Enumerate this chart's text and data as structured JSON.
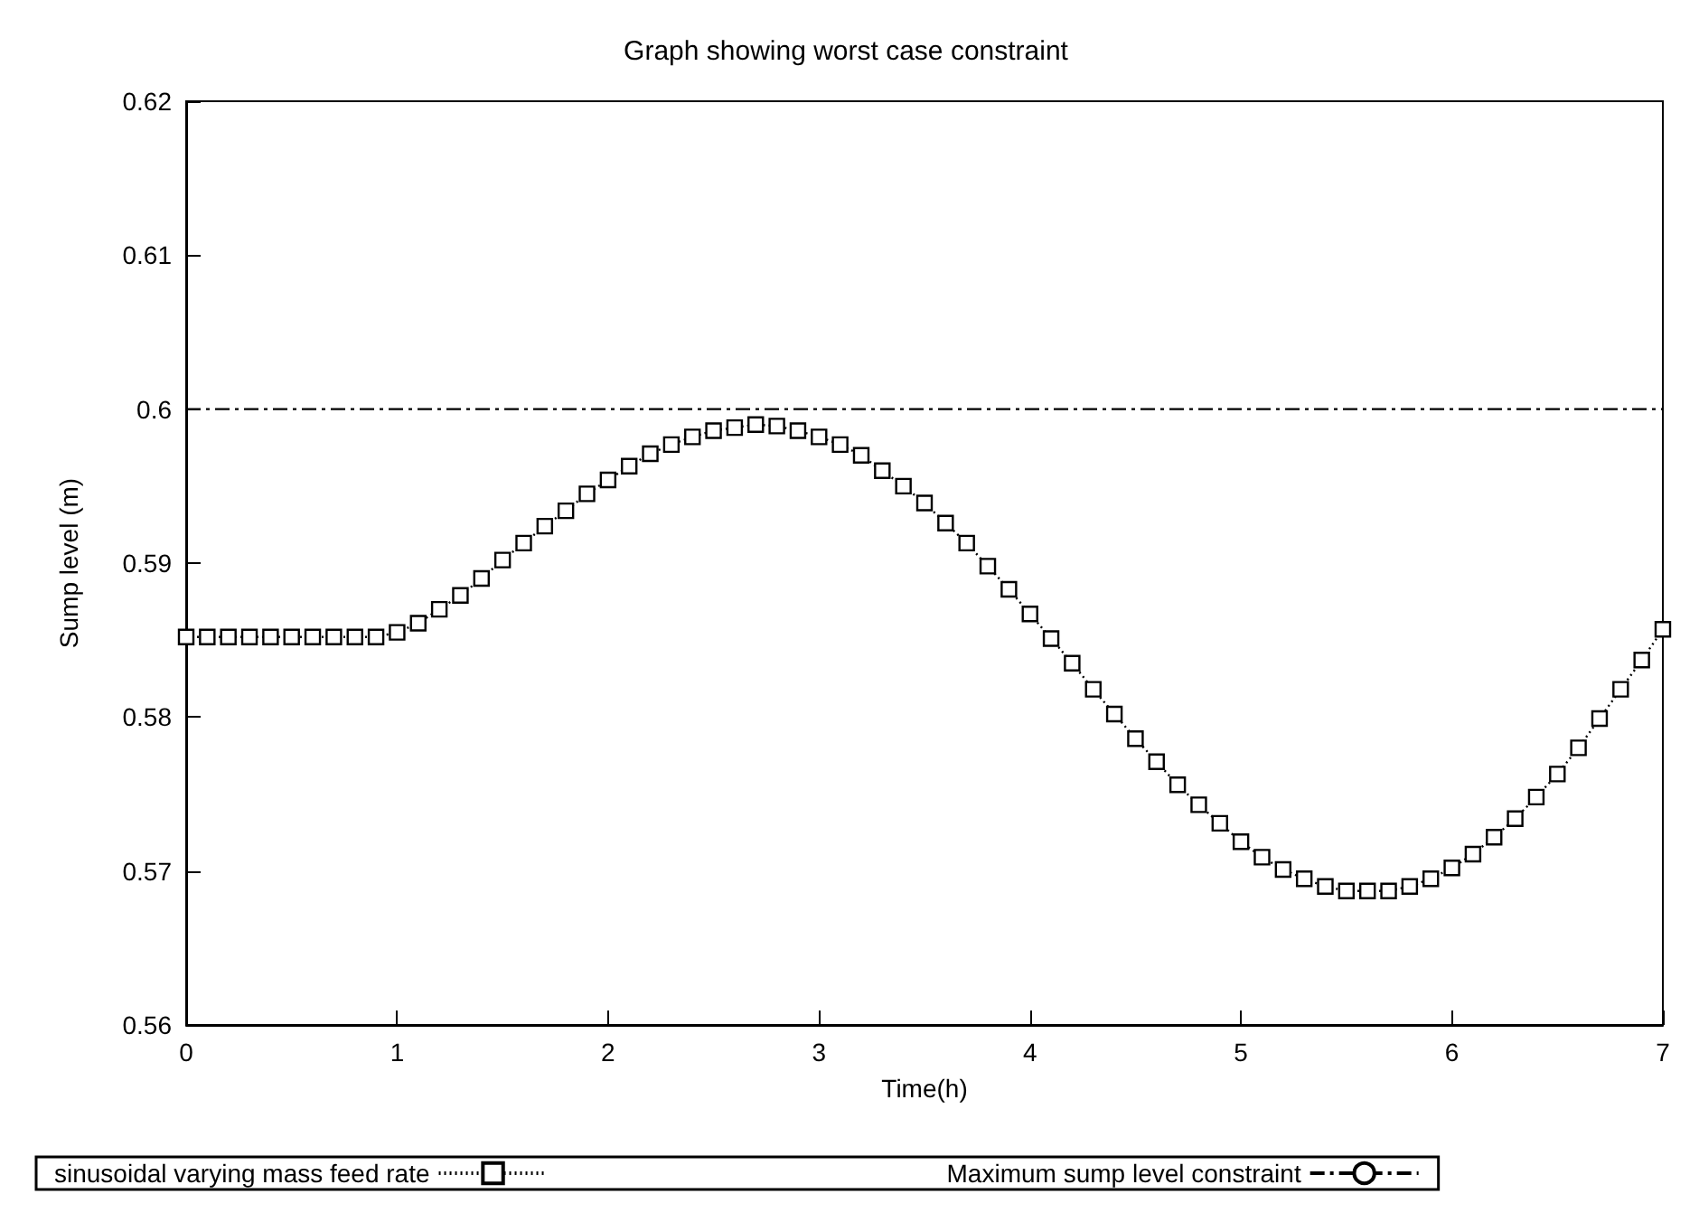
{
  "chart_data": {
    "type": "line",
    "title": "Graph showing worst case constraint",
    "xlabel": "Time(h)",
    "ylabel": "Sump level (m)",
    "xlim": [
      0,
      7
    ],
    "xticks": [
      0,
      1,
      2,
      3,
      4,
      5,
      6,
      7
    ],
    "ylim": [
      0.56,
      0.62
    ],
    "yticks": [
      0.56,
      0.57,
      0.58,
      0.59,
      0.6,
      0.61,
      0.62
    ],
    "grid": false,
    "legend": "bottom",
    "series": [
      {
        "name": "sinusoidal varying mass feed rate",
        "color": "#000000",
        "marker": "square",
        "line_style": "dotted",
        "x": [
          0,
          0.1,
          0.2,
          0.3,
          0.4,
          0.5,
          0.6,
          0.7,
          0.8,
          0.9,
          1.0,
          1.1,
          1.2,
          1.3,
          1.4,
          1.5,
          1.6,
          1.7,
          1.8,
          1.9,
          2.0,
          2.1,
          2.2,
          2.3,
          2.4,
          2.5,
          2.6,
          2.7,
          2.8,
          2.9,
          3.0,
          3.1,
          3.2,
          3.3,
          3.4,
          3.5,
          3.6,
          3.7,
          3.8,
          3.9,
          4.0,
          4.1,
          4.2,
          4.3,
          4.4,
          4.5,
          4.6,
          4.7,
          4.8,
          4.9,
          5.0,
          5.1,
          5.2,
          5.3,
          5.4,
          5.5,
          5.6,
          5.7,
          5.8,
          5.9,
          6.0,
          6.1,
          6.2,
          6.3,
          6.4,
          6.5,
          6.6,
          6.7,
          6.8,
          6.9,
          7.0
        ],
        "values": [
          0.5852,
          0.5852,
          0.5852,
          0.5852,
          0.5852,
          0.5852,
          0.5852,
          0.5852,
          0.5852,
          0.5852,
          0.5855,
          0.5861,
          0.587,
          0.5879,
          0.589,
          0.5902,
          0.5913,
          0.5924,
          0.5934,
          0.5945,
          0.5954,
          0.5963,
          0.5971,
          0.5977,
          0.5982,
          0.5986,
          0.5988,
          0.599,
          0.5989,
          0.5986,
          0.5982,
          0.5977,
          0.597,
          0.596,
          0.595,
          0.5939,
          0.5926,
          0.5913,
          0.5898,
          0.5883,
          0.5867,
          0.5851,
          0.5835,
          0.5818,
          0.5802,
          0.5786,
          0.5771,
          0.5756,
          0.5743,
          0.5731,
          0.5719,
          0.5709,
          0.5701,
          0.5695,
          0.569,
          0.5687,
          0.5687,
          0.5687,
          0.569,
          0.5695,
          0.5702,
          0.5711,
          0.5722,
          0.5734,
          0.5748,
          0.5763,
          0.578,
          0.5799,
          0.5818,
          0.5837,
          0.5857
        ]
      },
      {
        "name": "Maximum sump level constraint",
        "color": "#000000",
        "marker": "none",
        "line_style": "dashed",
        "x": [
          0,
          7
        ],
        "values": [
          0.6,
          0.6
        ]
      }
    ]
  }
}
